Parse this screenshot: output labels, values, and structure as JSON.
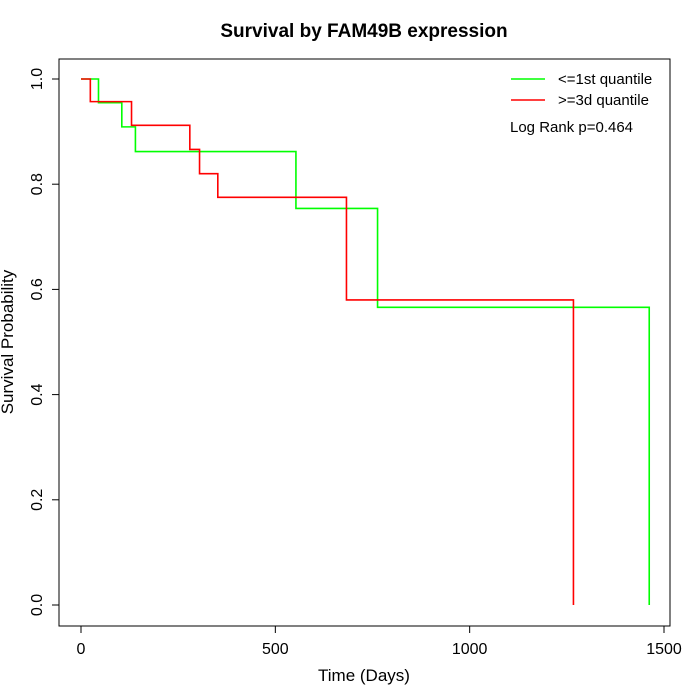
{
  "chart_data": {
    "type": "line",
    "title": "Survival by FAM49B expression",
    "xlabel": "Time (Days)",
    "ylabel": "Survival Probability",
    "xlim": [
      0,
      1500
    ],
    "ylim": [
      0,
      1
    ],
    "xticks": [
      0,
      500,
      1000,
      1500
    ],
    "xtick_labels": [
      "0",
      "500",
      "1000",
      "1500"
    ],
    "yticks": [
      0,
      0.2,
      0.4,
      0.6,
      0.8,
      1.0
    ],
    "ytick_labels": [
      "0.0",
      "0.2",
      "0.4",
      "0.6",
      "0.8",
      "1.0"
    ],
    "grid": false,
    "legend_position": "top-right",
    "annotation": "Log Rank p=0.464",
    "series": [
      {
        "name": "<=1st quantile",
        "color": "#00ff00",
        "step": true,
        "x": [
          0,
          45,
          105,
          140,
          553,
          763,
          1462,
          1462
        ],
        "y": [
          1.0,
          0.955,
          0.909,
          0.862,
          0.754,
          0.566,
          0.566,
          0.0
        ]
      },
      {
        "name": ">=3d quantile",
        "color": "#ff0000",
        "step": true,
        "x": [
          0,
          24,
          130,
          280,
          305,
          352,
          683,
          1267,
          1267
        ],
        "y": [
          1.0,
          0.957,
          0.912,
          0.866,
          0.82,
          0.775,
          0.58,
          0.58,
          0.0
        ]
      }
    ]
  }
}
